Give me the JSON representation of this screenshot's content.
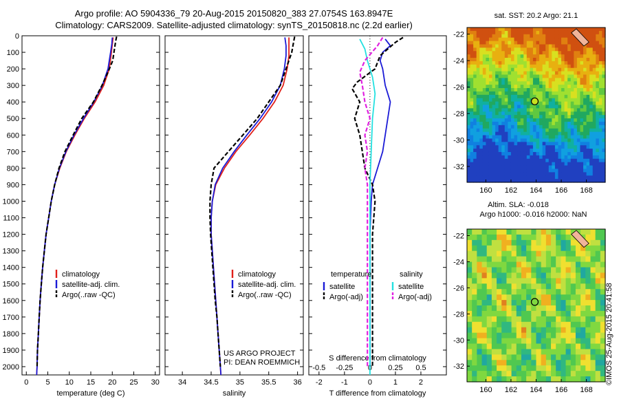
{
  "title_lines": [
    "Argo profile: AO 5904336_79 20-Aug-2015 20150820_383 27.0754S 163.8947E",
    "Climatology: CARS2009. Satellite-adjusted climatology: synTS_20150818.nc (2.2d earlier)"
  ],
  "side_note": "©IMOS 25-Aug-2015 20:41:58",
  "colors": {
    "climatology": "#e0201a",
    "satellite": "#1a1ad6",
    "argo": "#000000",
    "sat_salinity": "#22e0e0",
    "argo_salinity": "#e020e0"
  },
  "chart_data": [
    {
      "id": "temperature",
      "type": "line",
      "xlabel": "temperature (deg C)",
      "ylabel": "",
      "xlim": [
        -1,
        31
      ],
      "ylim": [
        2050,
        0
      ],
      "xticks": [
        0,
        5,
        10,
        15,
        20,
        25,
        30
      ],
      "yticks": [
        0,
        100,
        200,
        300,
        400,
        500,
        600,
        700,
        800,
        900,
        1000,
        1100,
        1200,
        1300,
        1400,
        1500,
        1600,
        1700,
        1800,
        1900,
        2000
      ],
      "legend": [
        "climatology",
        "satellite-adj. clim.",
        "Argo(..raw -QC)"
      ],
      "legend_position": "lower-right",
      "series": [
        {
          "name": "climatology",
          "color": "#e0201a",
          "dash": "",
          "points": [
            [
              20.2,
              10
            ],
            [
              20.0,
              50
            ],
            [
              19.8,
              100
            ],
            [
              19.3,
              200
            ],
            [
              18.0,
              300
            ],
            [
              16.0,
              400
            ],
            [
              13.5,
              500
            ],
            [
              11.3,
              600
            ],
            [
              9.3,
              700
            ],
            [
              7.8,
              800
            ],
            [
              6.6,
              900
            ],
            [
              5.8,
              1000
            ],
            [
              5.2,
              1100
            ],
            [
              4.6,
              1200
            ],
            [
              4.2,
              1300
            ],
            [
              3.8,
              1400
            ],
            [
              3.5,
              1500
            ],
            [
              3.2,
              1600
            ],
            [
              3.0,
              1700
            ],
            [
              2.8,
              1800
            ],
            [
              2.6,
              1900
            ],
            [
              2.5,
              2000
            ],
            [
              2.4,
              2050
            ]
          ]
        },
        {
          "name": "satellite-adj. clim.",
          "color": "#1a1ad6",
          "dash": "",
          "points": [
            [
              20.0,
              10
            ],
            [
              19.9,
              50
            ],
            [
              19.6,
              100
            ],
            [
              19.0,
              200
            ],
            [
              17.7,
              300
            ],
            [
              15.7,
              400
            ],
            [
              13.3,
              500
            ],
            [
              11.1,
              600
            ],
            [
              9.2,
              700
            ],
            [
              7.7,
              800
            ],
            [
              6.6,
              900
            ],
            [
              5.8,
              1000
            ],
            [
              5.2,
              1100
            ],
            [
              4.6,
              1200
            ],
            [
              4.2,
              1300
            ],
            [
              3.8,
              1400
            ],
            [
              3.5,
              1500
            ],
            [
              3.2,
              1600
            ],
            [
              3.0,
              1700
            ],
            [
              2.8,
              1800
            ],
            [
              2.6,
              1900
            ],
            [
              2.5,
              2000
            ],
            [
              2.4,
              2050
            ]
          ]
        },
        {
          "name": "Argo(..raw -QC)",
          "color": "#000000",
          "dash": "6,3",
          "points": [
            [
              21.0,
              5
            ],
            [
              20.8,
              30
            ],
            [
              20.5,
              80
            ],
            [
              20.1,
              150
            ],
            [
              19.0,
              220
            ],
            [
              17.6,
              300
            ],
            [
              15.6,
              400
            ],
            [
              12.9,
              500
            ],
            [
              10.9,
              600
            ],
            [
              9.0,
              700
            ],
            [
              7.6,
              800
            ],
            [
              6.6,
              900
            ],
            [
              5.8,
              1000
            ],
            [
              5.2,
              1100
            ],
            [
              4.6,
              1200
            ],
            [
              4.2,
              1300
            ],
            [
              3.8,
              1400
            ],
            [
              3.5,
              1500
            ],
            [
              3.2,
              1600
            ],
            [
              3.0,
              1700
            ],
            [
              2.8,
              1800
            ],
            [
              2.6,
              1900
            ],
            [
              2.5,
              2000
            ]
          ]
        }
      ]
    },
    {
      "id": "salinity",
      "type": "line",
      "xlabel": "salinity",
      "ylabel": "",
      "xlim": [
        33.7,
        36.1
      ],
      "ylim": [
        2050,
        0
      ],
      "xticks": [
        34,
        34.5,
        35,
        35.5,
        36
      ],
      "yticks": [],
      "legend": [
        "climatology",
        "satellite-adj. clim.",
        "Argo(..raw -QC)"
      ],
      "legend_position": "lower-right",
      "annotations": [
        "US ARGO PROJECT",
        "PI: DEAN ROEMMICH"
      ],
      "series": [
        {
          "name": "climatology",
          "color": "#e0201a",
          "dash": "",
          "points": [
            [
              35.85,
              10
            ],
            [
              35.85,
              60
            ],
            [
              35.85,
              120
            ],
            [
              35.82,
              200
            ],
            [
              35.75,
              300
            ],
            [
              35.6,
              400
            ],
            [
              35.4,
              500
            ],
            [
              35.17,
              600
            ],
            [
              34.93,
              700
            ],
            [
              34.73,
              800
            ],
            [
              34.58,
              900
            ],
            [
              34.52,
              1000
            ],
            [
              34.5,
              1100
            ],
            [
              34.5,
              1200
            ],
            [
              34.52,
              1300
            ],
            [
              34.54,
              1400
            ],
            [
              34.56,
              1500
            ],
            [
              34.58,
              1600
            ],
            [
              34.6,
              1700
            ],
            [
              34.62,
              1800
            ],
            [
              34.64,
              1900
            ],
            [
              34.66,
              2000
            ],
            [
              34.67,
              2050
            ]
          ]
        },
        {
          "name": "satellite-adj. clim.",
          "color": "#1a1ad6",
          "dash": "",
          "points": [
            [
              35.78,
              10
            ],
            [
              35.8,
              60
            ],
            [
              35.8,
              120
            ],
            [
              35.77,
              200
            ],
            [
              35.7,
              300
            ],
            [
              35.55,
              400
            ],
            [
              35.35,
              500
            ],
            [
              35.12,
              600
            ],
            [
              34.9,
              700
            ],
            [
              34.7,
              800
            ],
            [
              34.57,
              900
            ],
            [
              34.52,
              1000
            ],
            [
              34.5,
              1100
            ],
            [
              34.5,
              1200
            ],
            [
              34.52,
              1300
            ],
            [
              34.54,
              1400
            ],
            [
              34.56,
              1500
            ],
            [
              34.58,
              1600
            ],
            [
              34.6,
              1700
            ],
            [
              34.62,
              1800
            ],
            [
              34.64,
              1900
            ],
            [
              34.66,
              2000
            ],
            [
              34.67,
              2050
            ]
          ]
        },
        {
          "name": "Argo(..raw -QC)",
          "color": "#000000",
          "dash": "6,3",
          "points": [
            [
              35.95,
              5
            ],
            [
              35.93,
              40
            ],
            [
              35.9,
              100
            ],
            [
              35.8,
              200
            ],
            [
              35.7,
              300
            ],
            [
              35.5,
              400
            ],
            [
              35.3,
              500
            ],
            [
              35.05,
              600
            ],
            [
              34.8,
              700
            ],
            [
              34.55,
              800
            ],
            [
              34.5,
              900
            ],
            [
              34.48,
              1000
            ],
            [
              34.48,
              1100
            ],
            [
              34.49,
              1200
            ],
            [
              34.51,
              1300
            ],
            [
              34.53,
              1400
            ],
            [
              34.55,
              1500
            ],
            [
              34.57,
              1600
            ],
            [
              34.6,
              1700
            ],
            [
              34.62,
              1800
            ],
            [
              34.64,
              1900
            ],
            [
              34.66,
              2000
            ]
          ]
        }
      ]
    },
    {
      "id": "difference",
      "type": "line",
      "xlabel": "T difference from climatology",
      "xlabel_top": "S difference from climatology",
      "ylabel": "",
      "xlim": [
        -2.4,
        3.0
      ],
      "ylim": [
        2050,
        0
      ],
      "xticks": [
        -2,
        -1,
        0,
        1,
        2
      ],
      "s_ticks": [
        "-0.5",
        "-0.25",
        "0",
        "0.25",
        "0.5"
      ],
      "s_tick_positions": [
        -2,
        -1,
        0,
        1,
        2
      ],
      "yticks": [],
      "legend_left_title": "temperature",
      "legend_right_title": "salinity",
      "legend": [
        "satellite",
        "Argo(-adj)",
        "satellite",
        "Argo(-adj)"
      ],
      "legend_position": "lower-center",
      "series": [
        {
          "name": "satellite",
          "group": "temperature",
          "color": "#1a1ad6",
          "dash": "",
          "points": [
            [
              0.6,
              20
            ],
            [
              0.8,
              60
            ],
            [
              0.5,
              100
            ],
            [
              0.4,
              150
            ],
            [
              0.5,
              200
            ],
            [
              0.6,
              300
            ],
            [
              0.8,
              400
            ],
            [
              0.7,
              500
            ],
            [
              0.6,
              600
            ],
            [
              0.5,
              700
            ],
            [
              0.3,
              800
            ],
            [
              0.1,
              900
            ],
            [
              0.05,
              1000
            ],
            [
              0,
              1200
            ],
            [
              0,
              1500
            ],
            [
              0,
              1800
            ],
            [
              0,
              2000
            ]
          ]
        },
        {
          "name": "Argo(-adj)",
          "group": "temperature",
          "color": "#000000",
          "dash": "6,3",
          "points": [
            [
              1.3,
              10
            ],
            [
              1.0,
              40
            ],
            [
              0.7,
              80
            ],
            [
              0.4,
              120
            ],
            [
              0.2,
              200
            ],
            [
              -0.5,
              280
            ],
            [
              -0.7,
              320
            ],
            [
              -0.4,
              400
            ],
            [
              -0.6,
              500
            ],
            [
              -0.4,
              600
            ],
            [
              -0.3,
              700
            ],
            [
              -0.2,
              800
            ],
            [
              0.1,
              900
            ],
            [
              0.2,
              1000
            ],
            [
              0.1,
              1200
            ],
            [
              0.1,
              1500
            ],
            [
              0.1,
              1800
            ],
            [
              0.1,
              2000
            ]
          ]
        },
        {
          "name": "satellite",
          "group": "salinity",
          "color": "#22e0e0",
          "dash": "",
          "points": [
            [
              -0.4,
              20
            ],
            [
              -0.2,
              80
            ],
            [
              -0.1,
              150
            ],
            [
              0.1,
              250
            ],
            [
              0.2,
              350
            ],
            [
              0.1,
              500
            ],
            [
              0.05,
              700
            ],
            [
              0,
              900
            ],
            [
              0,
              1200
            ],
            [
              0,
              1500
            ],
            [
              0,
              1800
            ],
            [
              0,
              2050
            ]
          ]
        },
        {
          "name": "Argo(-adj)",
          "group": "salinity",
          "color": "#e020e0",
          "dash": "6,3",
          "points": [
            [
              0.5,
              10
            ],
            [
              0.3,
              60
            ],
            [
              -0.2,
              150
            ],
            [
              -0.4,
              220
            ],
            [
              -0.3,
              300
            ],
            [
              -0.2,
              400
            ],
            [
              0,
              500
            ],
            [
              -0.2,
              600
            ],
            [
              -0.1,
              700
            ],
            [
              -0.2,
              800
            ],
            [
              -0.1,
              900
            ],
            [
              -0.1,
              1200
            ],
            [
              -0.1,
              1500
            ],
            [
              -0.1,
              1800
            ],
            [
              -0.1,
              2000
            ]
          ]
        }
      ]
    },
    {
      "id": "sst_map",
      "type": "heatmap",
      "title": "sat. SST: 20.2 Argo: 21.1",
      "xlim": [
        158.5,
        169.5
      ],
      "ylim": [
        -33.2,
        -21.5
      ],
      "xticks": [
        160,
        162,
        164,
        166,
        168
      ],
      "yticks": [
        -22,
        -24,
        -26,
        -28,
        -30,
        -32
      ],
      "marker": [
        163.89,
        -27.08
      ],
      "colors": [
        "#d05010",
        "#e08010",
        "#e8b010",
        "#d8e020",
        "#a0e030",
        "#60c840",
        "#20a860",
        "#10b0a0",
        "#10a0e0",
        "#1080e0",
        "#2040c0"
      ]
    },
    {
      "id": "sla_map",
      "type": "heatmap",
      "title": "Altim. SLA: -0.018",
      "subtitle": "Argo h1000: -0.016 h2000: NaN",
      "xlim": [
        158.5,
        169.5
      ],
      "ylim": [
        -33.2,
        -21.5
      ],
      "xticks": [
        160,
        162,
        164,
        166,
        168
      ],
      "yticks": [
        -22,
        -24,
        -26,
        -28,
        -30,
        -32
      ],
      "marker": [
        163.89,
        -27.08
      ],
      "colors": [
        "#20a8a0",
        "#30b880",
        "#50c850",
        "#80d840",
        "#c0e040",
        "#f0e030",
        "#f0b020",
        "#e08020"
      ]
    }
  ]
}
